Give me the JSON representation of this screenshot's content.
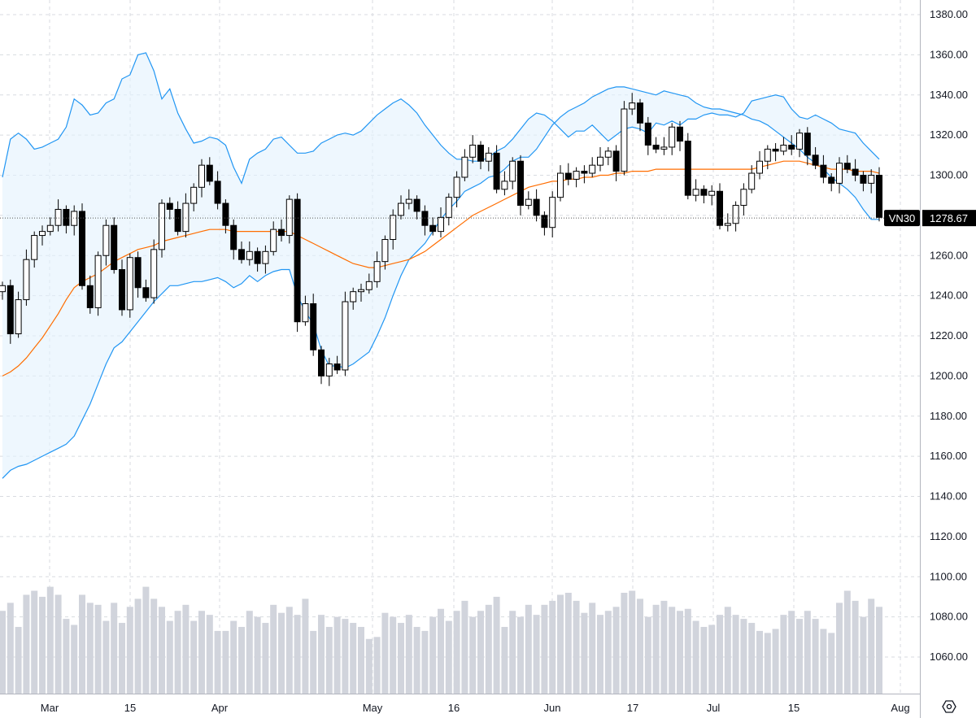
{
  "chart_data": {
    "type": "candlestick",
    "symbol": "VN30",
    "last_price": "1278.67",
    "y_axis": {
      "ticks": [
        "1380.00",
        "1360.00",
        "1340.00",
        "1320.00",
        "1300.00",
        "1280.00",
        "1260.00",
        "1240.00",
        "1220.00",
        "1200.00",
        "1180.00",
        "1160.00",
        "1140.00",
        "1120.00",
        "1100.00",
        "1080.00",
        "1060.00"
      ],
      "range": [
        1049,
        1385
      ]
    },
    "x_axis": {
      "ticks": [
        "Mar",
        "15",
        "Apr",
        "May",
        "16",
        "Jun",
        "17",
        "Jul",
        "15",
        "Aug"
      ]
    },
    "settings_icon": "gear-icon",
    "colors": {
      "up_body": "#ffffff",
      "down_body": "#000000",
      "wick": "#000000",
      "band_line": "#2196f3",
      "band_fill": "#e3f2fd",
      "sma_line": "#ff6d00",
      "volume": "#d1d4dc",
      "grid": "#d8dbe0",
      "badge_bg": "#000000"
    },
    "series": {
      "close": [
        1245,
        1221,
        1238,
        1258,
        1270,
        1272,
        1275,
        1283,
        1275,
        1282,
        1245,
        1234,
        1260,
        1275,
        1253,
        1233,
        1259,
        1244,
        1239,
        1263,
        1286,
        1283,
        1272,
        1286,
        1294,
        1305,
        1297,
        1286,
        1275,
        1263,
        1258,
        1262,
        1256,
        1262,
        1273,
        1270,
        1288,
        1227,
        1236,
        1213,
        1200,
        1206,
        1203,
        1237,
        1242,
        1243,
        1247,
        1257,
        1268,
        1280,
        1286,
        1288,
        1282,
        1275,
        1272,
        1279,
        1289,
        1299,
        1309,
        1315,
        1307,
        1311,
        1293,
        1297,
        1307,
        1285,
        1288,
        1280,
        1274,
        1289,
        1301,
        1298,
        1302,
        1301,
        1305,
        1309,
        1312,
        1302,
        1333,
        1336,
        1326,
        1315,
        1313,
        1314,
        1324,
        1317,
        1290,
        1293,
        1290,
        1292,
        1275,
        1276,
        1285,
        1293,
        1301,
        1307,
        1313,
        1312,
        1315,
        1313,
        1321,
        1310,
        1305,
        1299,
        1296,
        1306,
        1303,
        1300,
        1296,
        1300,
        1279
      ],
      "bb_upper": [
        1299,
        1318,
        1321,
        1318,
        1313,
        1314,
        1316,
        1318,
        1324,
        1338,
        1335,
        1330,
        1331,
        1336,
        1338,
        1348,
        1350,
        1360,
        1361,
        1352,
        1338,
        1343,
        1331,
        1323,
        1316,
        1317,
        1319,
        1318,
        1315,
        1304,
        1296,
        1308,
        1311,
        1313,
        1318,
        1319,
        1315,
        1311,
        1311,
        1312,
        1316,
        1318,
        1320,
        1321,
        1320,
        1322,
        1326,
        1330,
        1333,
        1336,
        1338,
        1335,
        1331,
        1325,
        1320,
        1315,
        1311,
        1308,
        1308,
        1307,
        1307,
        1309,
        1312,
        1314,
        1318,
        1323,
        1328,
        1331,
        1330,
        1327,
        1323,
        1319,
        1322,
        1322,
        1325,
        1321,
        1317,
        1320,
        1323,
        1324,
        1323,
        1321,
        1326,
        1325,
        1327,
        1325,
        1328,
        1328,
        1330,
        1331,
        1330,
        1330,
        1329,
        1331,
        1337,
        1338,
        1339,
        1340,
        1339,
        1333,
        1329,
        1328,
        1330,
        1328,
        1326,
        1323,
        1322,
        1321,
        1316,
        1312,
        1308
      ],
      "bb_lower": [
        1149,
        1153,
        1155,
        1156,
        1158,
        1160,
        1162,
        1164,
        1166,
        1170,
        1178,
        1186,
        1196,
        1206,
        1214,
        1217,
        1222,
        1227,
        1232,
        1237,
        1241,
        1245,
        1245,
        1246,
        1247,
        1247,
        1248,
        1249,
        1247,
        1244,
        1246,
        1250,
        1247,
        1250,
        1252,
        1253,
        1253,
        1240,
        1232,
        1226,
        1213,
        1205,
        1205,
        1204,
        1206,
        1209,
        1212,
        1220,
        1229,
        1240,
        1250,
        1258,
        1262,
        1266,
        1272,
        1278,
        1283,
        1287,
        1292,
        1294,
        1296,
        1299,
        1300,
        1303,
        1307,
        1309,
        1309,
        1313,
        1319,
        1325,
        1329,
        1332,
        1334,
        1336,
        1339,
        1341,
        1343,
        1344,
        1344,
        1343,
        1342,
        1341,
        1340,
        1342,
        1341,
        1340,
        1339,
        1336,
        1334,
        1333,
        1333,
        1332,
        1331,
        1330,
        1328,
        1327,
        1325,
        1322,
        1319,
        1316,
        1313,
        1309,
        1306,
        1303,
        1299,
        1296,
        1293,
        1289,
        1283,
        1278,
        1278
      ],
      "sma20": [
        1200,
        1202,
        1205,
        1209,
        1214,
        1219,
        1225,
        1231,
        1238,
        1244,
        1247,
        1249,
        1251,
        1254,
        1257,
        1259,
        1261,
        1263,
        1264,
        1265,
        1267,
        1268,
        1269,
        1270,
        1271,
        1272,
        1273,
        1273,
        1273,
        1272,
        1272,
        1272,
        1272,
        1272,
        1272,
        1272,
        1272,
        1270,
        1268,
        1266,
        1264,
        1262,
        1260,
        1258,
        1256,
        1255,
        1254,
        1254,
        1255,
        1256,
        1257,
        1258,
        1260,
        1262,
        1265,
        1268,
        1271,
        1274,
        1277,
        1280,
        1282,
        1284,
        1286,
        1288,
        1290,
        1292,
        1294,
        1295,
        1296,
        1297,
        1297,
        1298,
        1298,
        1299,
        1299,
        1300,
        1300,
        1301,
        1301,
        1302,
        1302,
        1302,
        1303,
        1303,
        1303,
        1303,
        1303,
        1303,
        1303,
        1303,
        1303,
        1303,
        1303,
        1303,
        1303,
        1304,
        1305,
        1306,
        1307,
        1307,
        1307,
        1306,
        1305,
        1304,
        1303,
        1303,
        1303,
        1302,
        1302,
        1302,
        1301
      ],
      "volume": [
        1083,
        1087,
        1075,
        1091,
        1093,
        1090,
        1095,
        1091,
        1079,
        1076,
        1091,
        1087,
        1086,
        1078,
        1087,
        1077,
        1085,
        1089,
        1095,
        1089,
        1085,
        1078,
        1083,
        1086,
        1078,
        1083,
        1081,
        1073,
        1073,
        1078,
        1075,
        1083,
        1080,
        1077,
        1086,
        1082,
        1085,
        1081,
        1089,
        1073,
        1081,
        1075,
        1080,
        1079,
        1077,
        1075,
        1069,
        1070,
        1082,
        1080,
        1077,
        1081,
        1075,
        1073,
        1080,
        1084,
        1078,
        1083,
        1088,
        1080,
        1083,
        1086,
        1090,
        1075,
        1083,
        1080,
        1086,
        1081,
        1086,
        1088,
        1091,
        1092,
        1088,
        1082,
        1087,
        1081,
        1083,
        1085,
        1092,
        1093,
        1089,
        1080,
        1086,
        1088,
        1085,
        1083,
        1084,
        1078,
        1075,
        1076,
        1081,
        1085,
        1081,
        1079,
        1077,
        1073,
        1072,
        1074,
        1081,
        1083,
        1079,
        1083,
        1079,
        1074,
        1072,
        1087,
        1093,
        1088,
        1080,
        1089,
        1085
      ]
    }
  }
}
